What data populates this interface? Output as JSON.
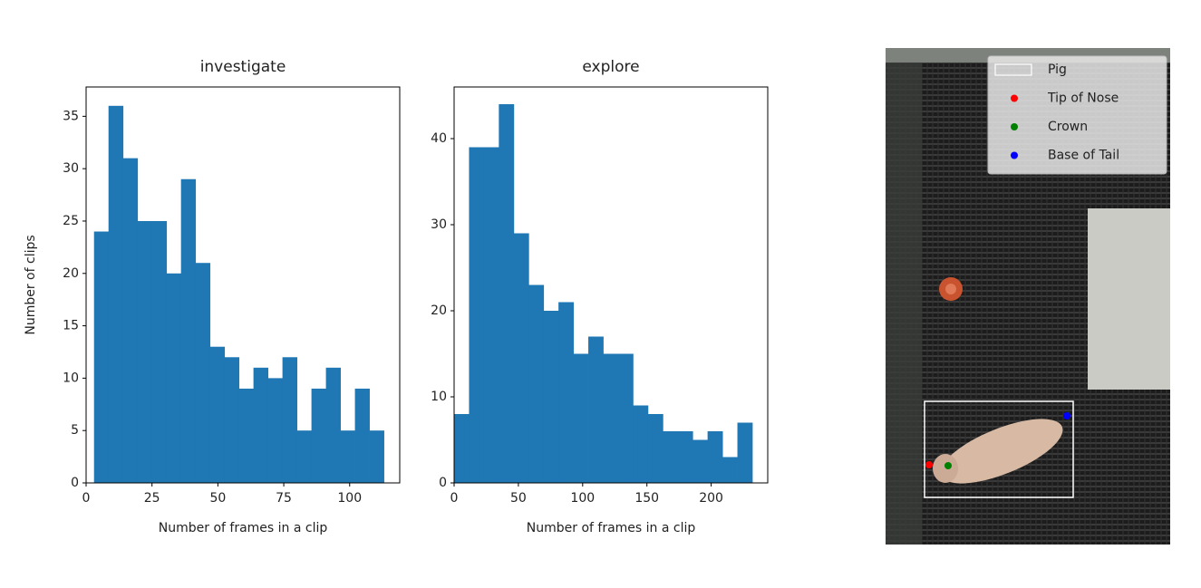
{
  "chart_data": [
    {
      "type": "histogram",
      "title": "investigate",
      "xlabel": "Number of frames in a clip",
      "ylabel": "Number of clips",
      "color": "#1f77b4",
      "bins": [
        3,
        8.5,
        14,
        19.5,
        25,
        30.5,
        36,
        41.5,
        47,
        52.5,
        58,
        63.5,
        69,
        74.5,
        80,
        85.5,
        91,
        96.5,
        102,
        107.5,
        113
      ],
      "values": [
        24,
        36,
        31,
        25,
        25,
        20,
        29,
        21,
        13,
        12,
        9,
        11,
        10,
        12,
        5,
        9,
        11,
        5,
        9,
        5
      ],
      "xlim": [
        0,
        119
      ],
      "xticks": [
        0,
        25,
        50,
        75,
        100
      ],
      "ylim": [
        0,
        37.8
      ],
      "yticks": [
        0,
        5,
        10,
        15,
        20,
        25,
        30,
        35
      ]
    },
    {
      "type": "histogram",
      "title": "explore",
      "xlabel": "Number of frames in a clip",
      "color": "#1f77b4",
      "bins": [
        0,
        11.6,
        23.2,
        34.8,
        46.4,
        58,
        69.6,
        81.2,
        92.8,
        104.4,
        116,
        127.6,
        139.2,
        150.8,
        162.4,
        174,
        185.6,
        197.2,
        208.8,
        220.4,
        232
      ],
      "values": [
        8,
        39,
        39,
        44,
        29,
        23,
        20,
        21,
        15,
        17,
        15,
        15,
        9,
        8,
        6,
        6,
        5,
        6,
        3,
        7
      ],
      "xlim": [
        0,
        244
      ],
      "xticks": [
        0,
        50,
        100,
        150,
        200
      ],
      "ylim": [
        0,
        46
      ],
      "yticks": [
        0,
        10,
        20,
        30,
        40
      ]
    }
  ],
  "image": {
    "legend": [
      {
        "name": "Pig",
        "color": "#ffffff"
      },
      {
        "name": "Tip of Nose",
        "color": "#ff0000"
      },
      {
        "name": "Crown",
        "color": "#008000"
      },
      {
        "name": "Base of Tail",
        "color": "#0000ff"
      }
    ]
  }
}
